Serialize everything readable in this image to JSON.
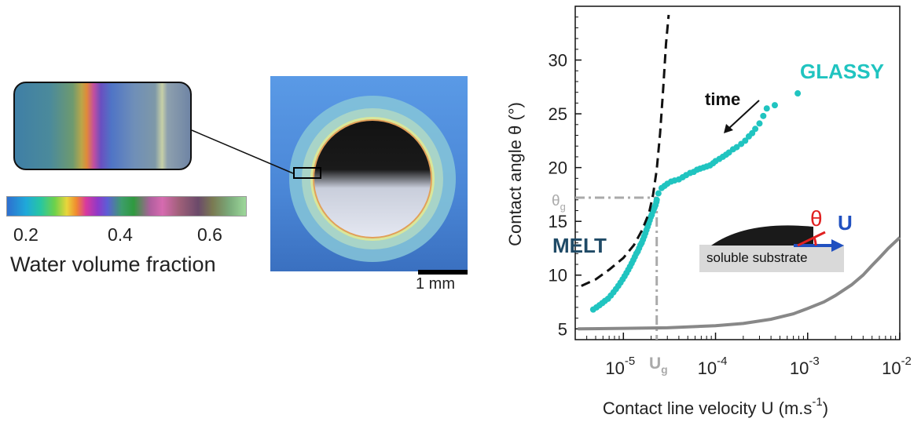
{
  "colorbar": {
    "ticks": [
      "0.2",
      "0.4",
      "0.6"
    ],
    "title": "Water volume fraction"
  },
  "photo": {
    "scale_label": "1 mm"
  },
  "chart_data": {
    "type": "scatter",
    "xscale": "log",
    "xlabel": "Contact line velocity U (m.s",
    "xlabel_sup": "-1",
    "xlabel_end": ")",
    "ylabel": "Contact angle θ (°)",
    "xlim": [
      3e-06,
      0.01
    ],
    "ylim": [
      4,
      35
    ],
    "x_ticks": [
      {
        "v": 1e-05,
        "base": "10",
        "exp": "-5"
      },
      {
        "v": 0.0001,
        "base": "10",
        "exp": "-4"
      },
      {
        "v": 0.001,
        "base": "10",
        "exp": "-3"
      },
      {
        "v": 0.01,
        "base": "10",
        "exp": "-2"
      }
    ],
    "y_ticks": [
      5,
      10,
      15,
      20,
      25,
      30
    ],
    "annotations": {
      "glassy": "GLASSY",
      "melt": "MELT",
      "time": "time",
      "theta_g": "θ",
      "theta_g_sub": "g",
      "u_g": "U",
      "u_g_sub": "g",
      "inset_theta": "θ",
      "inset_u": "U",
      "inset_substrate": "soluble substrate"
    },
    "Ug": 2.3e-05,
    "theta_g": 17.2,
    "series": [
      {
        "color": "#20c4c0",
        "style": "points",
        "x": [
          4.7e-06,
          5.1e-06,
          5.5e-06,
          5.9e-06,
          6.3e-06,
          6.8e-06,
          7.3e-06,
          7.8e-06,
          8.3e-06,
          8.8e-06,
          9.3e-06,
          9.8e-06,
          1.03e-05,
          1.08e-05,
          1.13e-05,
          1.18e-05,
          1.23e-05,
          1.28e-05,
          1.33e-05,
          1.38e-05,
          1.43e-05,
          1.48e-05,
          1.53e-05,
          1.58e-05,
          1.63e-05,
          1.68e-05,
          1.73e-05,
          1.78e-05,
          1.83e-05,
          1.88e-05,
          1.93e-05,
          1.98e-05,
          2.03e-05,
          2.08e-05,
          2.13e-05,
          2.18e-05,
          2.23e-05,
          2.28e-05,
          2.3e-05,
          2.4e-05,
          2.6e-05,
          2.8e-05,
          3e-05,
          3.3e-05,
          3.6e-05,
          4e-05,
          4.4e-05,
          4.8e-05,
          5.3e-05,
          5.8e-05,
          6.3e-05,
          6.8e-05,
          7.4e-05,
          8e-05,
          8.7e-05,
          9.4e-05,
          0.0001,
          0.00011,
          0.00012,
          0.00013,
          0.00014,
          0.000155,
          0.00017,
          0.00019,
          0.00021,
          0.00023,
          0.00025,
          0.00027,
          0.0003,
          0.00033,
          0.00036,
          0.00044,
          0.00078
        ],
        "y": [
          6.8,
          7.0,
          7.2,
          7.4,
          7.6,
          7.8,
          8.1,
          8.4,
          8.7,
          9.0,
          9.3,
          9.6,
          9.9,
          10.2,
          10.5,
          10.8,
          11.1,
          11.4,
          11.7,
          12.0,
          12.2,
          12.5,
          12.8,
          13.0,
          13.3,
          13.6,
          13.9,
          14.2,
          14.5,
          14.8,
          15.1,
          15.4,
          15.6,
          15.9,
          16.1,
          16.3,
          16.5,
          16.8,
          17.0,
          17.6,
          18.1,
          18.3,
          18.5,
          18.7,
          18.8,
          18.9,
          19.1,
          19.3,
          19.5,
          19.6,
          19.8,
          19.9,
          20.0,
          20.1,
          20.2,
          20.4,
          20.6,
          20.8,
          21.0,
          21.2,
          21.4,
          21.7,
          21.9,
          22.2,
          22.5,
          22.9,
          23.2,
          23.6,
          24.1,
          24.8,
          25.5,
          25.8,
          26.9
        ]
      },
      {
        "color": "#111111",
        "style": "dashed",
        "x": [
          3.5e-06,
          5e-06,
          7e-06,
          1e-05,
          1.3e-05,
          1.6e-05,
          1.9e-05,
          2.1e-05,
          2.3e-05,
          2.5e-05,
          2.7e-05,
          2.9e-05,
          3.1e-05
        ],
        "y": [
          9.0,
          9.6,
          10.5,
          11.6,
          12.8,
          14.2,
          15.8,
          17.5,
          19.8,
          23.2,
          27.3,
          31.5,
          34.2
        ]
      },
      {
        "color": "#888888",
        "style": "solid",
        "x": [
          3.2e-06,
          1e-05,
          3e-05,
          0.0001,
          0.0002,
          0.0004,
          0.0007,
          0.001,
          0.0015,
          0.002,
          0.003,
          0.004,
          0.005,
          0.006,
          0.0075,
          0.01
        ],
        "y": [
          5.0,
          5.05,
          5.1,
          5.3,
          5.5,
          5.9,
          6.4,
          6.9,
          7.5,
          8.1,
          9.1,
          10.0,
          10.9,
          11.6,
          12.5,
          13.5
        ]
      }
    ]
  }
}
